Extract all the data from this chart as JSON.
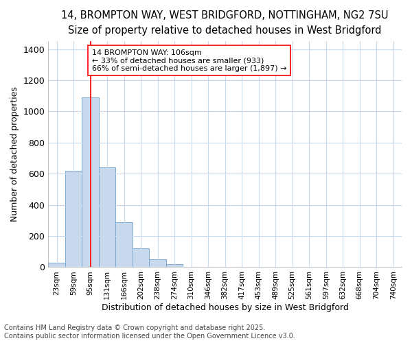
{
  "title_line1": "14, BROMPTON WAY, WEST BRIDGFORD, NOTTINGHAM, NG2 7SU",
  "title_line2": "Size of property relative to detached houses in West Bridgford",
  "xlabel": "Distribution of detached houses by size in West Bridgford",
  "ylabel": "Number of detached properties",
  "categories": [
    "23sqm",
    "59sqm",
    "95sqm",
    "131sqm",
    "166sqm",
    "202sqm",
    "238sqm",
    "274sqm",
    "310sqm",
    "346sqm",
    "382sqm",
    "417sqm",
    "453sqm",
    "489sqm",
    "525sqm",
    "561sqm",
    "597sqm",
    "632sqm",
    "668sqm",
    "704sqm",
    "740sqm"
  ],
  "values": [
    30,
    620,
    1090,
    640,
    290,
    120,
    50,
    20,
    0,
    0,
    0,
    0,
    0,
    0,
    0,
    0,
    0,
    0,
    0,
    0,
    0
  ],
  "bar_color": "#c8d8ed",
  "bar_edgecolor": "#7aaad0",
  "vline_x": 2,
  "vline_color": "red",
  "annotation_text": "14 BROMPTON WAY: 106sqm\n← 33% of detached houses are smaller (933)\n66% of semi-detached houses are larger (1,897) →",
  "annotation_box_color": "white",
  "annotation_box_edgecolor": "red",
  "ylim": [
    0,
    1450
  ],
  "yticks": [
    0,
    200,
    400,
    600,
    800,
    1000,
    1200,
    1400
  ],
  "footer_line1": "Contains HM Land Registry data © Crown copyright and database right 2025.",
  "footer_line2": "Contains public sector information licensed under the Open Government Licence v3.0.",
  "bg_color": "#ffffff",
  "plot_bg_color": "#ffffff",
  "grid_color": "#c8d8ed",
  "title_fontsize": 10.5,
  "subtitle_fontsize": 9.5,
  "footer_fontsize": 7,
  "annotation_fontsize": 8
}
